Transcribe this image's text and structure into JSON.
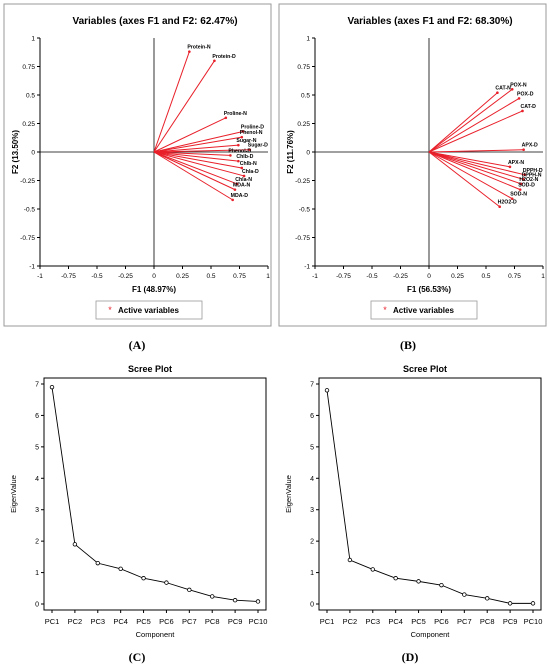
{
  "panel_labels": [
    "(A)",
    "(B)",
    "(C)",
    "(D)"
  ],
  "colors": {
    "vector": "#e8202a",
    "axis": "#000000",
    "line": "#000000",
    "frame": "#9a9a9a"
  },
  "chart_data": [
    {
      "type": "scatter",
      "kind": "biplot",
      "title": "Variables (axes F1 and F2: 62.47%)",
      "xlabel": "F1 (48.97%)",
      "ylabel": "F2 (13.50%)",
      "xlim": [
        -1,
        1
      ],
      "ylim": [
        -1,
        1
      ],
      "xticks": [
        "-1",
        "-0.75",
        "-0.5",
        "-0.25",
        "0",
        "0.25",
        "0.5",
        "0.75",
        "1"
      ],
      "yticks": [
        "1",
        "0.75",
        "0.5",
        "0.25",
        "0",
        "-0.25",
        "-0.5",
        "-0.75",
        "-1"
      ],
      "legend": "Active variables",
      "variables": [
        {
          "name": "Protein-N",
          "x": 0.31,
          "y": 0.88
        },
        {
          "name": "Protein-D",
          "x": 0.53,
          "y": 0.8
        },
        {
          "name": "Proline-N",
          "x": 0.63,
          "y": 0.3
        },
        {
          "name": "Proline-D",
          "x": 0.78,
          "y": 0.18
        },
        {
          "name": "Phenol-N",
          "x": 0.77,
          "y": 0.13
        },
        {
          "name": "Sugar-N",
          "x": 0.74,
          "y": 0.06
        },
        {
          "name": "Sugar-D",
          "x": 0.84,
          "y": 0.02
        },
        {
          "name": "Phenol-D",
          "x": 0.67,
          "y": -0.03
        },
        {
          "name": "Chlb-D",
          "x": 0.74,
          "y": -0.08
        },
        {
          "name": "Chlb-N",
          "x": 0.77,
          "y": -0.14
        },
        {
          "name": "Chla-D",
          "x": 0.79,
          "y": -0.21
        },
        {
          "name": "Chla-N",
          "x": 0.73,
          "y": -0.28
        },
        {
          "name": "MDA-N",
          "x": 0.71,
          "y": -0.33
        },
        {
          "name": "MDA-D",
          "x": 0.69,
          "y": -0.42
        }
      ]
    },
    {
      "type": "scatter",
      "kind": "biplot",
      "title": "Variables (axes F1 and F2: 68.30%)",
      "xlabel": "F1 (56.53%)",
      "ylabel": "F2 (11.76%)",
      "xlim": [
        -1,
        1
      ],
      "ylim": [
        -1,
        1
      ],
      "xticks": [
        "-1",
        "-0.75",
        "-0.5",
        "-0.25",
        "0",
        "0.25",
        "0.5",
        "0.75",
        "1"
      ],
      "yticks": [
        "1",
        "0.75",
        "0.5",
        "0.25",
        "0",
        "-0.25",
        "-0.5",
        "-0.75",
        "-1"
      ],
      "legend": "Active variables",
      "variables": [
        {
          "name": "CAT-N",
          "x": 0.6,
          "y": 0.52
        },
        {
          "name": "POX-N",
          "x": 0.73,
          "y": 0.55
        },
        {
          "name": "POX-D",
          "x": 0.79,
          "y": 0.47
        },
        {
          "name": "CAT-D",
          "x": 0.82,
          "y": 0.36
        },
        {
          "name": "APX-D",
          "x": 0.83,
          "y": 0.02
        },
        {
          "name": "APX-N",
          "x": 0.71,
          "y": -0.13
        },
        {
          "name": "DPPH-D",
          "x": 0.84,
          "y": -0.2
        },
        {
          "name": "DPPH-N",
          "x": 0.83,
          "y": -0.24
        },
        {
          "name": "H2O2-N",
          "x": 0.81,
          "y": -0.28
        },
        {
          "name": "SOD-D",
          "x": 0.8,
          "y": -0.33
        },
        {
          "name": "SOD-N",
          "x": 0.73,
          "y": -0.41
        },
        {
          "name": "H2O2-D",
          "x": 0.62,
          "y": -0.48
        }
      ]
    },
    {
      "type": "line",
      "title": "Scree Plot",
      "xlabel": "Component",
      "ylabel": "EigenValue",
      "categories": [
        "PC1",
        "PC2",
        "PC3",
        "PC4",
        "PC5",
        "PC6",
        "PC7",
        "PC8",
        "PC9",
        "PC10"
      ],
      "values": [
        6.9,
        1.9,
        1.3,
        1.12,
        0.82,
        0.68,
        0.45,
        0.24,
        0.12,
        0.08
      ],
      "ylim": [
        0,
        7
      ],
      "yticks": [
        "0",
        "1",
        "2",
        "3",
        "4",
        "5",
        "6",
        "7"
      ]
    },
    {
      "type": "line",
      "title": "Scree Plot",
      "xlabel": "Component",
      "ylabel": "EigenValue",
      "categories": [
        "PC1",
        "PC2",
        "PC3",
        "PC4",
        "PC5",
        "PC6",
        "PC7",
        "PC8",
        "PC9",
        "PC10"
      ],
      "values": [
        6.8,
        1.4,
        1.1,
        0.82,
        0.72,
        0.6,
        0.3,
        0.18,
        0.02,
        0.02
      ],
      "ylim": [
        0,
        7
      ],
      "yticks": [
        "0",
        "1",
        "2",
        "3",
        "4",
        "5",
        "6",
        "7"
      ]
    }
  ]
}
